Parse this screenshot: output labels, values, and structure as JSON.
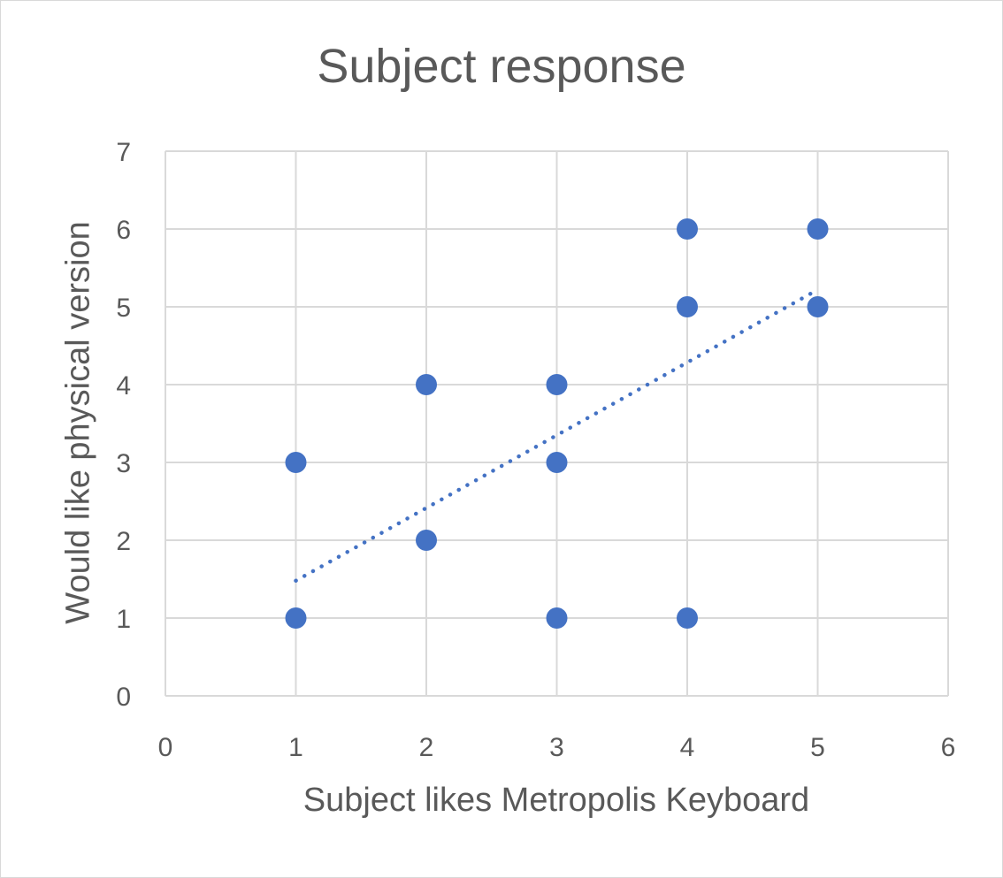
{
  "chart_data": {
    "type": "scatter",
    "title": "Subject response",
    "xlabel": "Subject likes Metropolis Keyboard",
    "ylabel": "Would like physical version",
    "xlim": [
      0,
      6
    ],
    "ylim": [
      0,
      7
    ],
    "x_ticks": [
      0,
      1,
      2,
      3,
      4,
      5,
      6
    ],
    "y_ticks": [
      0,
      1,
      2,
      3,
      4,
      5,
      6,
      7
    ],
    "grid": true,
    "legend": "none",
    "series": [
      {
        "color": "#4472c4",
        "points": [
          {
            "x": 1,
            "y": 3
          },
          {
            "x": 1,
            "y": 1
          },
          {
            "x": 2,
            "y": 4
          },
          {
            "x": 2,
            "y": 2
          },
          {
            "x": 3,
            "y": 4
          },
          {
            "x": 3,
            "y": 3
          },
          {
            "x": 3,
            "y": 1
          },
          {
            "x": 4,
            "y": 6
          },
          {
            "x": 4,
            "y": 5
          },
          {
            "x": 4,
            "y": 1
          },
          {
            "x": 5,
            "y": 6
          },
          {
            "x": 5,
            "y": 5
          }
        ]
      }
    ],
    "trendline": {
      "type": "linear",
      "style": "dotted",
      "color": "#4472c4",
      "x": [
        1,
        5
      ],
      "y": [
        1.48,
        5.22
      ]
    },
    "colors": {
      "grid": "#d9d9d9",
      "text": "#595959"
    }
  }
}
